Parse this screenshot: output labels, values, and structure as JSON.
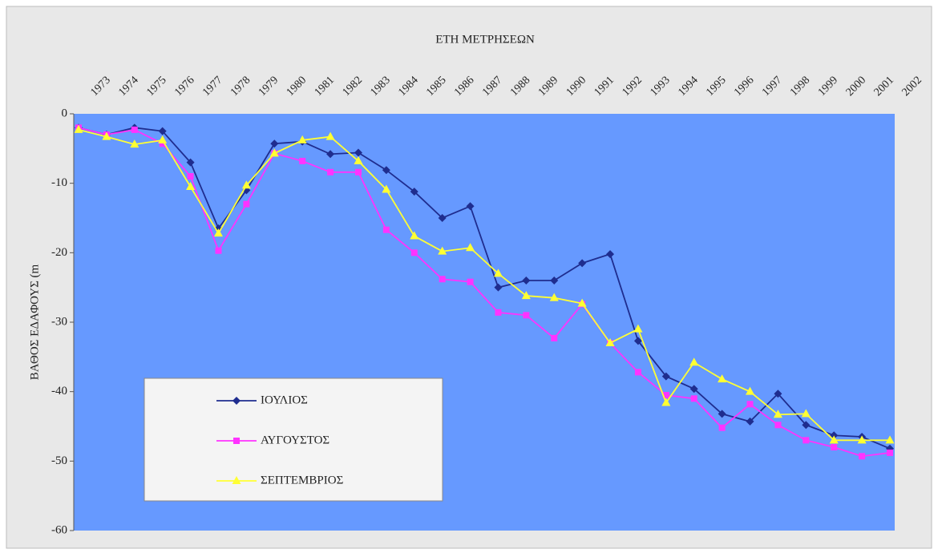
{
  "chart_data": {
    "type": "line",
    "title": "ΕΤΗ ΜΕΤΡΗΣΕΩΝ",
    "y_label": "ΒΑΘΟΣ ΕΔΑΦΟΥΣ (m",
    "categories": [
      "1973",
      "1974",
      "1975",
      "1976",
      "1977",
      "1978",
      "1979",
      "1980",
      "1981",
      "1982",
      "1983",
      "1984",
      "1985",
      "1986",
      "1987",
      "1988",
      "1989",
      "1990",
      "1991",
      "1992",
      "1993",
      "1994",
      "1995",
      "1996",
      "1997",
      "1998",
      "1999",
      "2000",
      "2001",
      "2002"
    ],
    "series": [
      {
        "name": "ΙΟΥΛΙΟΣ",
        "color": "#1f2d8f",
        "marker": "diamond",
        "values": [
          -2,
          -3,
          -2,
          -2.5,
          -7,
          -16.5,
          -11,
          -4.3,
          -4,
          -5.8,
          -5.6,
          -8.1,
          -11.2,
          -15,
          -13.3,
          -25,
          -24,
          -24,
          -21.5,
          -20.2,
          -32.7,
          -37.8,
          -39.6,
          -43.2,
          -44.3,
          -40.3,
          -44.8,
          -46.3,
          -46.5,
          -48.2
        ]
      },
      {
        "name": "ΑΥΓΟΥΣΤΟΣ",
        "color": "#ff33ff",
        "marker": "square",
        "values": [
          -2,
          -3,
          -2.3,
          -4.3,
          -9,
          -19.7,
          -13,
          -5.7,
          -6.8,
          -8.4,
          -8.4,
          -16.7,
          -20,
          -23.8,
          -24.2,
          -28.6,
          -29,
          -32.3,
          -27.4,
          -33,
          -37.2,
          -40.5,
          -41,
          -45.2,
          -41.8,
          -44.8,
          -47,
          -48,
          -49.3,
          -48.8
        ]
      },
      {
        "name": "ΣΕΠΤΕΜΒΡΙΟΣ",
        "color": "#ffff33",
        "marker": "triangle",
        "values": [
          -2.3,
          -3.3,
          -4.4,
          -3.8,
          -10.5,
          -17.2,
          -10.3,
          -5.7,
          -3.8,
          -3.3,
          -6.8,
          -10.9,
          -17.6,
          -19.8,
          -19.3,
          -23,
          -26.2,
          -26.5,
          -27.3,
          -33,
          -31,
          -41.6,
          -35.8,
          -38.2,
          -40,
          -43.3,
          -43.2,
          -47,
          -47,
          -47
        ]
      }
    ],
    "ylim": [
      -60,
      0
    ],
    "yticks": [
      0,
      -10,
      -20,
      -30,
      -40,
      -50,
      -60
    ],
    "grid": false,
    "plot_background": "#6699ff"
  }
}
